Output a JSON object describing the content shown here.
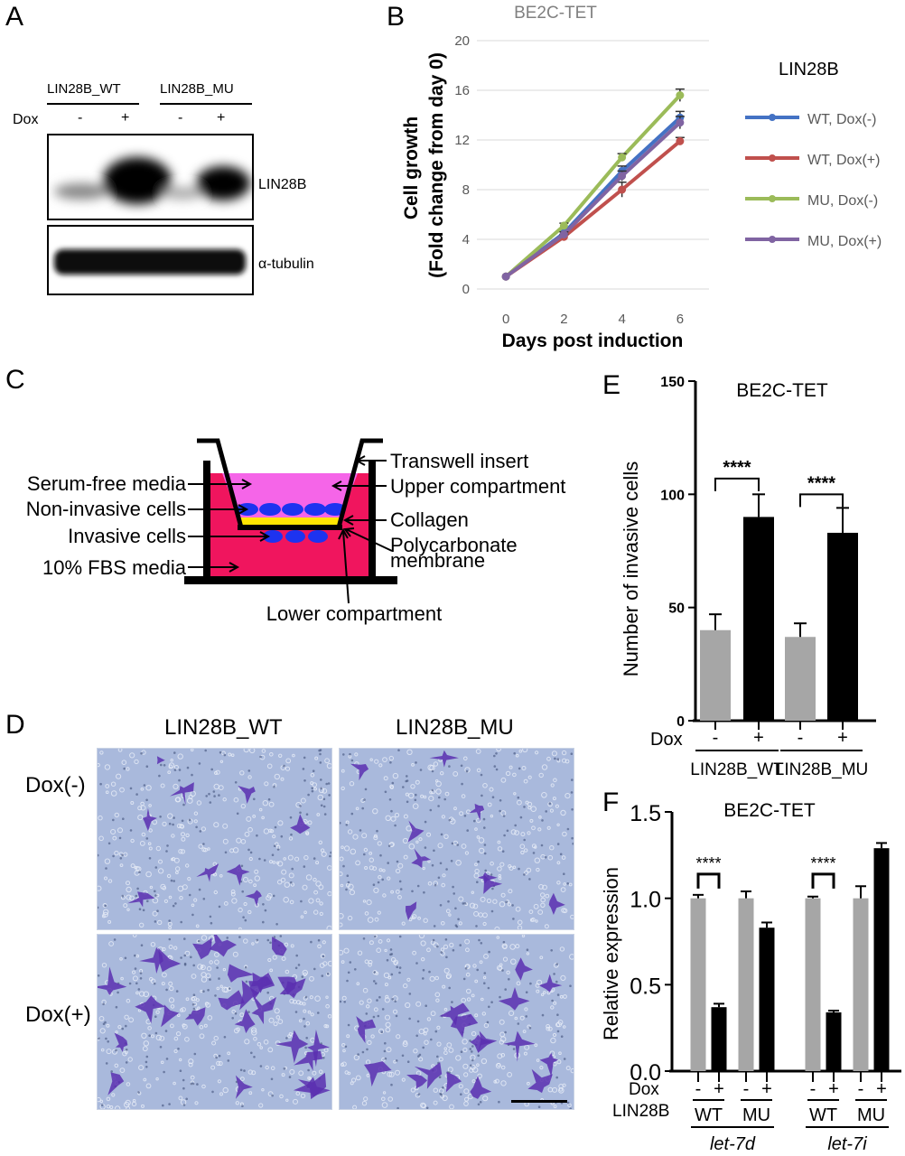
{
  "panels": {
    "a": "A",
    "b": "B",
    "c": "C",
    "d": "D",
    "e": "E",
    "f": "F"
  },
  "panel_a": {
    "groups": [
      "LIN28B_WT",
      "LIN28B_MU"
    ],
    "dox_label": "Dox",
    "dox_values": [
      "-",
      "+",
      "-",
      "+"
    ],
    "blot_labels": [
      "LIN28B",
      "α-tubulin"
    ]
  },
  "panel_c": {
    "left_labels": [
      "Serum-free media",
      "Non-invasive cells",
      "Invasive cells",
      "10% FBS media"
    ],
    "right_labels": [
      "Transwell insert",
      "Upper compartment",
      "Collagen",
      "Polycarbonate",
      "membrane"
    ],
    "bottom_label": "Lower compartment",
    "colors": {
      "lower_media": "#f0155e",
      "upper_media": "#f565e8",
      "collagen": "#ffe500",
      "cells": "#1d33f0",
      "walls": "#000000"
    }
  },
  "panel_d": {
    "columns": [
      "LIN28B_WT",
      "LIN28B_MU"
    ],
    "rows": [
      "Dox(-)",
      "Dox(+)"
    ],
    "background_color": "#a9b9dc",
    "stain_color": "#5a2fb0"
  },
  "chart_data": [
    {
      "id": "B",
      "type": "line",
      "title": "BE2C-TET",
      "xlabel": "Days post induction",
      "ylabel": [
        "Cell growth",
        "(Fold change from day 0)"
      ],
      "x": [
        0,
        2,
        4,
        6
      ],
      "xlim": [
        -1,
        7
      ],
      "ylim": [
        0,
        20
      ],
      "yticks": [
        0,
        4,
        8,
        12,
        16,
        20
      ],
      "grid": true,
      "legend_title": "LIN28B",
      "legend_position": "right",
      "series": [
        {
          "name": "WT, Dox(-)",
          "values": [
            1,
            4.5,
            9.5,
            13.8
          ],
          "err": [
            0,
            0.2,
            0.4,
            0.5
          ],
          "color": "#4472c4"
        },
        {
          "name": "WT, Dox(+)",
          "values": [
            1,
            4.2,
            8.0,
            11.9
          ],
          "err": [
            0,
            0.2,
            0.6,
            0.3
          ],
          "color": "#c0504d"
        },
        {
          "name": "MU, Dox(-)",
          "values": [
            1,
            5.1,
            10.6,
            15.6
          ],
          "err": [
            0,
            0.2,
            0.3,
            0.5
          ],
          "color": "#9bbb59"
        },
        {
          "name": "MU, Dox(+)",
          "values": [
            1,
            4.4,
            9.1,
            13.4
          ],
          "err": [
            0,
            0.2,
            0.4,
            0.5
          ],
          "color": "#8064a2"
        }
      ]
    },
    {
      "id": "E",
      "type": "bar",
      "title": "BE2C-TET",
      "ylabel": "Number of invasive cells",
      "ylim": [
        0,
        150
      ],
      "yticks": [
        0,
        50,
        100,
        150
      ],
      "categories": [
        "-",
        "+",
        "-",
        "+"
      ],
      "values": [
        40,
        90,
        37,
        83
      ],
      "err": [
        7,
        10,
        6,
        11
      ],
      "colors": [
        "#a6a6a6",
        "#000000",
        "#a6a6a6",
        "#000000"
      ],
      "dox_label": "Dox",
      "groups": [
        "LIN28B_WT",
        "LIN28B_MU"
      ],
      "significance": [
        "****",
        "****"
      ]
    },
    {
      "id": "F",
      "type": "bar",
      "title": "BE2C-TET",
      "ylabel": "Relative expression",
      "ylim": [
        0,
        1.5
      ],
      "yticks": [
        "0.0",
        "0.5",
        "1.0",
        "1.5"
      ],
      "categories": [
        "-",
        "+",
        "-",
        "+",
        "-",
        "+",
        "-",
        "+"
      ],
      "values": [
        1.0,
        0.37,
        1.0,
        0.83,
        1.0,
        0.34,
        1.0,
        1.29
      ],
      "err": [
        0.02,
        0.02,
        0.04,
        0.03,
        0.01,
        0.01,
        0.07,
        0.03
      ],
      "colors": [
        "#a6a6a6",
        "#000000",
        "#a6a6a6",
        "#000000",
        "#a6a6a6",
        "#000000",
        "#a6a6a6",
        "#000000"
      ],
      "dox_label": "Dox",
      "lin28b_label": "LIN28B",
      "lin28b_groups": [
        "WT",
        "MU",
        "WT",
        "MU"
      ],
      "mirnas": [
        "let-7d",
        "let-7i"
      ],
      "significance": [
        "****",
        "****"
      ]
    }
  ]
}
